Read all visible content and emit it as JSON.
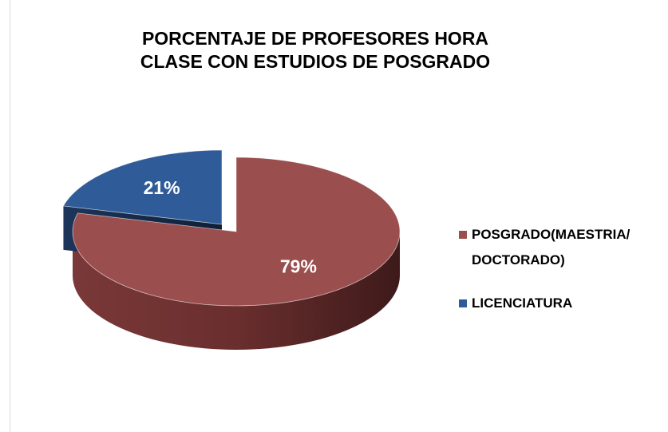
{
  "chart_data": {
    "type": "pie3d",
    "title": "PORCENTAJE DE PROFESORES HORA CLASE CON ESTUDIOS DE POSGRADO",
    "categories": [
      "POSGRADO(MAESTRIA/ DOCTORADO)",
      "LICENCIATURA"
    ],
    "values": [
      79,
      21
    ],
    "value_labels": [
      "79%",
      "21%"
    ],
    "colors": [
      "#9a4e4e",
      "#2f5b98"
    ],
    "legend": "right"
  }
}
